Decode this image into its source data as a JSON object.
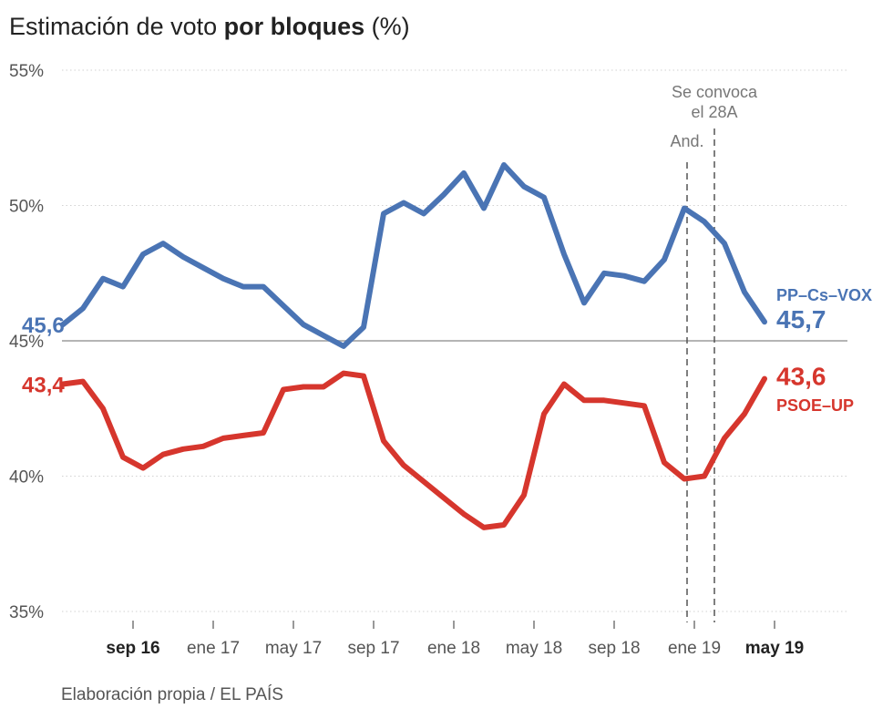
{
  "title": {
    "pre": "Estimación de voto ",
    "bold": "por bloques",
    "post": " (%)"
  },
  "source": "Elaboración propia / EL PAÍS",
  "chart_data": {
    "type": "line",
    "title": "Estimación de voto por bloques (%)",
    "xlabel": "",
    "ylabel": "",
    "ylim": [
      35,
      55
    ],
    "yticks": [
      "55%",
      "50%",
      "45%",
      "40%",
      "35%"
    ],
    "xticks": [
      {
        "label": "sep 16",
        "bold": true
      },
      {
        "label": "ene 17",
        "bold": false
      },
      {
        "label": "may 17",
        "bold": false
      },
      {
        "label": "sep 17",
        "bold": false
      },
      {
        "label": "ene 18",
        "bold": false
      },
      {
        "label": "may 18",
        "bold": false
      },
      {
        "label": "sep 18",
        "bold": false
      },
      {
        "label": "ene 19",
        "bold": false
      },
      {
        "label": "may 19",
        "bold": true
      }
    ],
    "grid": true,
    "reference_line": 45,
    "annotations": [
      {
        "label": "And.",
        "date": "2018-12"
      },
      {
        "label": "Se convoca el 28A",
        "date": "2019-02"
      }
    ],
    "series": [
      {
        "name": "PP–Cs–VOX",
        "color": "#4a74b4",
        "start_label": "45,6",
        "end_label": "45,7",
        "x": [
          "2016-06",
          "2016-07",
          "2016-08",
          "2016-09",
          "2016-10",
          "2016-11",
          "2016-12",
          "2017-01",
          "2017-02",
          "2017-03",
          "2017-04",
          "2017-05",
          "2017-06",
          "2017-07",
          "2017-08",
          "2017-09",
          "2017-10",
          "2017-11",
          "2017-12",
          "2018-01",
          "2018-02",
          "2018-03",
          "2018-04",
          "2018-05",
          "2018-06",
          "2018-07",
          "2018-08",
          "2018-09",
          "2018-10",
          "2018-11",
          "2018-12",
          "2019-01",
          "2019-02",
          "2019-03",
          "2019-04",
          "2019-05"
        ],
        "values": [
          45.6,
          46.2,
          47.3,
          47.0,
          48.2,
          48.6,
          48.1,
          47.7,
          47.3,
          47.0,
          47.0,
          46.3,
          45.6,
          45.2,
          44.8,
          45.5,
          49.7,
          50.1,
          49.7,
          50.4,
          51.2,
          49.9,
          51.5,
          50.7,
          50.3,
          48.2,
          46.4,
          47.5,
          47.4,
          47.2,
          48.0,
          49.9,
          49.4,
          48.6,
          46.8,
          45.7
        ]
      },
      {
        "name": "PSOE–UP",
        "color": "#d6362d",
        "start_label": "43,4",
        "end_label": "43,6",
        "x": [
          "2016-06",
          "2016-07",
          "2016-08",
          "2016-09",
          "2016-10",
          "2016-11",
          "2016-12",
          "2017-01",
          "2017-02",
          "2017-03",
          "2017-04",
          "2017-05",
          "2017-06",
          "2017-07",
          "2017-08",
          "2017-09",
          "2017-10",
          "2017-11",
          "2017-12",
          "2018-01",
          "2018-02",
          "2018-03",
          "2018-04",
          "2018-05",
          "2018-06",
          "2018-07",
          "2018-08",
          "2018-09",
          "2018-10",
          "2018-11",
          "2018-12",
          "2019-01",
          "2019-02",
          "2019-03",
          "2019-04",
          "2019-05"
        ],
        "values": [
          43.4,
          43.5,
          42.5,
          40.7,
          40.3,
          40.8,
          41.0,
          41.1,
          41.4,
          41.5,
          41.6,
          43.2,
          43.3,
          43.3,
          43.8,
          43.7,
          41.3,
          40.4,
          39.8,
          39.2,
          38.6,
          38.1,
          38.2,
          39.3,
          42.3,
          43.4,
          42.8,
          42.8,
          42.7,
          42.6,
          40.5,
          39.9,
          40.0,
          41.4,
          42.3,
          43.6
        ]
      }
    ]
  }
}
